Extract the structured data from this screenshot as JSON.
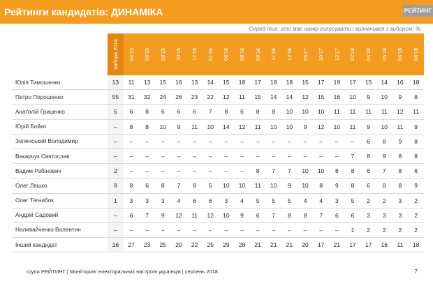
{
  "header": {
    "title": "Рейтинги кандидатів: ДИНАМІКА",
    "logo": "РЕЙТИНГ"
  },
  "subtitle": "Серед тих, хто має намір голосувати і визначився з вибором, %",
  "columns": [
    "вибори 2014",
    "04'15",
    "06'15",
    "08'15",
    "10'15",
    "12'15",
    "01'16",
    "06'16",
    "08'16",
    "09'16",
    "11'16",
    "12'16",
    "05'17",
    "10'17",
    "12'17",
    "02'18",
    "04'18",
    "05'18",
    "06'18",
    "08'18"
  ],
  "rows": [
    {
      "name": "Юлія Тимошенко",
      "values": [
        "13",
        "11",
        "13",
        "15",
        "16",
        "13",
        "14",
        "15",
        "18",
        "17",
        "18",
        "18",
        "15",
        "17",
        "19",
        "17",
        "15",
        "14",
        "16",
        "18"
      ]
    },
    {
      "name": "Петро Порошенко",
      "values": [
        "55",
        "31",
        "32",
        "24",
        "26",
        "23",
        "22",
        "12",
        "11",
        "15",
        "14",
        "14",
        "12",
        "15",
        "16",
        "10",
        "9",
        "10",
        "9",
        "8"
      ]
    },
    {
      "name": "Анатолій Гриценко",
      "values": [
        "5",
        "6",
        "8",
        "6",
        "6",
        "6",
        "7",
        "8",
        "6",
        "8",
        "8",
        "10",
        "10",
        "10",
        "11",
        "11",
        "11",
        "11",
        "12",
        "11"
      ]
    },
    {
      "name": "Юрій Бойко",
      "values": [
        "–",
        "8",
        "8",
        "10",
        "9",
        "11",
        "10",
        "14",
        "12",
        "11",
        "10",
        "10",
        "9",
        "12",
        "10",
        "11",
        "9",
        "10",
        "11",
        "9"
      ]
    },
    {
      "name": "Зеленський Володимир",
      "values": [
        "–",
        "–",
        "–",
        "–",
        "–",
        "–",
        "–",
        "–",
        "–",
        "–",
        "–",
        "–",
        "–",
        "–",
        "–",
        "–",
        "6",
        "8",
        "9",
        "8"
      ]
    },
    {
      "name": "Вакарчук Святослав",
      "values": [
        "–",
        "–",
        "–",
        "–",
        "–",
        "–",
        "–",
        "–",
        "–",
        "–",
        "–",
        "–",
        "–",
        "–",
        "–",
        "7",
        "8",
        "9",
        "8",
        "8"
      ]
    },
    {
      "name": "Вадим Рабінович",
      "values": [
        "2",
        "–",
        "–",
        "–",
        "–",
        "–",
        "–",
        "–",
        "–",
        "8",
        "7",
        "7",
        "10",
        "10",
        "8",
        "8",
        "6",
        "7",
        "8",
        "6"
      ]
    },
    {
      "name": "Олег Ляшко",
      "values": [
        "8",
        "8",
        "6",
        "8",
        "7",
        "8",
        "5",
        "10",
        "10",
        "11",
        "10",
        "9",
        "10",
        "8",
        "9",
        "8",
        "6",
        "8",
        "8",
        "9"
      ]
    },
    {
      "name": "Олег Тягнибок",
      "values": [
        "1",
        "3",
        "3",
        "3",
        "4",
        "6",
        "6",
        "3",
        "4",
        "5",
        "5",
        "5",
        "4",
        "4",
        "3",
        "5",
        "2",
        "2",
        "3",
        "2"
      ]
    },
    {
      "name": "Андрій Садовий",
      "values": [
        "–",
        "6",
        "7",
        "9",
        "12",
        "11",
        "12",
        "10",
        "9",
        "6",
        "7",
        "8",
        "8",
        "7",
        "6",
        "6",
        "3",
        "3",
        "3",
        "2"
      ]
    },
    {
      "name": "Наливайченко Валентин",
      "values": [
        "–",
        "–",
        "–",
        "–",
        "–",
        "–",
        "–",
        "–",
        "–",
        "–",
        "–",
        "–",
        "–",
        "–",
        "–",
        "1",
        "2",
        "2",
        "2",
        "2"
      ]
    },
    {
      "name": "Інший кандидат",
      "values": [
        "16",
        "27",
        "23",
        "25",
        "20",
        "22",
        "25",
        "29",
        "28",
        "21",
        "21",
        "21",
        "20",
        "17",
        "21",
        "17",
        "17",
        "16",
        "11",
        "18"
      ]
    }
  ],
  "footer": {
    "text": "група РЕЙТИНГ | Моніторинг електоральних настроїв українців | серпень 2018",
    "page": "7"
  }
}
